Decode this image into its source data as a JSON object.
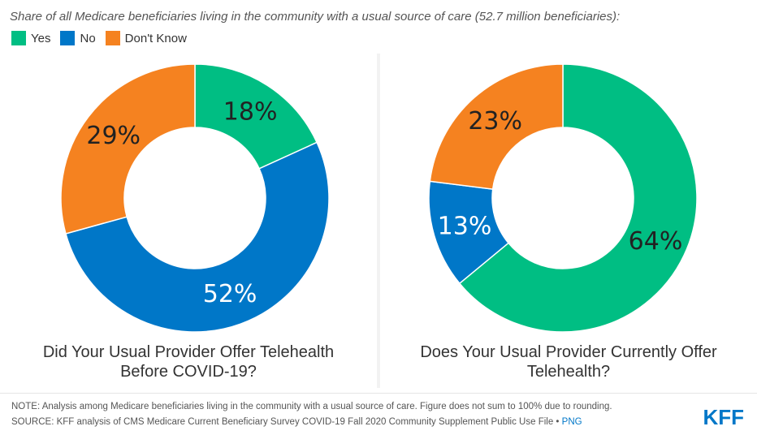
{
  "subtitle": "Share of all Medicare beneficiaries living in the community with a usual source of care (52.7 million beneficiaries):",
  "legend": [
    {
      "label": "Yes",
      "color": "#00be83"
    },
    {
      "label": "No",
      "color": "#0077c8"
    },
    {
      "label": "Don't Know",
      "color": "#f58220"
    }
  ],
  "chart_data": [
    {
      "type": "pie",
      "title": "Did Your Usual Provider Offer Telehealth Before COVID-19?",
      "title_lines": [
        "Did Your Usual Provider Offer Telehealth",
        "Before COVID-19?"
      ],
      "categories": [
        "Yes",
        "No",
        "Don't Know"
      ],
      "values": [
        18,
        52,
        29
      ],
      "labels": [
        "18%",
        "52%",
        "29%"
      ],
      "label_colors": [
        "#222222",
        "#ffffff",
        "#222222"
      ],
      "colors": [
        "#00be83",
        "#0077c8",
        "#f58220"
      ]
    },
    {
      "type": "pie",
      "title": "Does Your Usual Provider Currently Offer Telehealth?",
      "title_lines": [
        "Does Your Usual Provider Currently Offer",
        "Telehealth?"
      ],
      "categories": [
        "Yes",
        "No",
        "Don't Know"
      ],
      "values": [
        64,
        13,
        23
      ],
      "labels": [
        "64%",
        "13%",
        "23%"
      ],
      "label_colors": [
        "#222222",
        "#ffffff",
        "#222222"
      ],
      "colors": [
        "#00be83",
        "#0077c8",
        "#f58220"
      ]
    }
  ],
  "footer": {
    "note": "NOTE: Analysis among Medicare beneficiaries living in the community with a usual source of care. Figure does not sum to 100% due to rounding.",
    "source": "SOURCE: KFF analysis of CMS Medicare Current Beneficiary Survey COVID-19 Fall 2020 Community Supplement Public Use File •",
    "png": "PNG",
    "logo": "KFF"
  }
}
